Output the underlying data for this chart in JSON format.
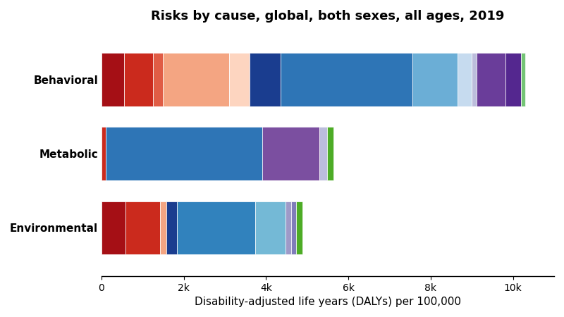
{
  "title": "Risks by cause, global, both sexes, all ages, 2019",
  "xlabel": "Disability-adjusted life years (DALYs) per 100,000",
  "categories": [
    "Environmental",
    "Metabolic",
    "Behavioral"
  ],
  "segments": {
    "Behavioral": [
      {
        "value": 550,
        "color": "#a50f15"
      },
      {
        "value": 700,
        "color": "#cb2a1d"
      },
      {
        "value": 250,
        "color": "#e05c45"
      },
      {
        "value": 1600,
        "color": "#f4a582"
      },
      {
        "value": 500,
        "color": "#fdd5c0"
      },
      {
        "value": 750,
        "color": "#1a3d8f"
      },
      {
        "value": 3200,
        "color": "#2e75b6"
      },
      {
        "value": 1100,
        "color": "#6baed6"
      },
      {
        "value": 350,
        "color": "#c6dbef"
      },
      {
        "value": 120,
        "color": "#bcbddc"
      },
      {
        "value": 700,
        "color": "#6a3d9a"
      },
      {
        "value": 380,
        "color": "#54278f"
      },
      {
        "value": 100,
        "color": "#74c476"
      }
    ],
    "Metabolic": [
      {
        "value": 100,
        "color": "#cb2a1d"
      },
      {
        "value": 3800,
        "color": "#2e75b6"
      },
      {
        "value": 1400,
        "color": "#7b4fa0"
      },
      {
        "value": 180,
        "color": "#bcbddc"
      },
      {
        "value": 150,
        "color": "#4dac26"
      }
    ],
    "Environmental": [
      {
        "value": 580,
        "color": "#a50f15"
      },
      {
        "value": 850,
        "color": "#cb2a1d"
      },
      {
        "value": 150,
        "color": "#f4a582"
      },
      {
        "value": 250,
        "color": "#1a3d8f"
      },
      {
        "value": 1900,
        "color": "#3182bd"
      },
      {
        "value": 750,
        "color": "#74b9d6"
      },
      {
        "value": 130,
        "color": "#9e9ac8"
      },
      {
        "value": 120,
        "color": "#807dba"
      },
      {
        "value": 150,
        "color": "#4dac26"
      }
    ]
  },
  "xlim": [
    0,
    11000
  ],
  "xticks": [
    0,
    2000,
    4000,
    6000,
    8000,
    10000
  ],
  "xticklabels": [
    "0",
    "2k",
    "4k",
    "6k",
    "8k",
    "10k"
  ],
  "bar_height": 0.72,
  "background_color": "#ffffff",
  "title_fontsize": 13,
  "label_fontsize": 11,
  "tick_fontsize": 10,
  "figsize": [
    8.0,
    4.5
  ],
  "dpi": 100
}
